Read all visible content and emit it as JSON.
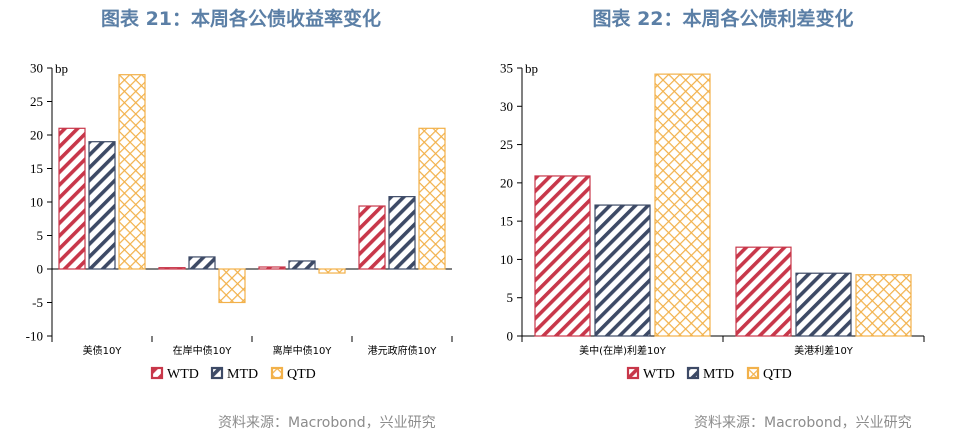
{
  "figures": [
    {
      "title": "图表 21：本周各公债收益率变化",
      "source": "资料来源：Macrobond，兴业研究",
      "chart_data": {
        "type": "bar",
        "unit": "bp",
        "categories": [
          "美债10Y",
          "在岸中债10Y",
          "离岸中债10Y",
          "港元政府债10Y"
        ],
        "series": [
          {
            "name": "WTD",
            "values": [
              21,
              0.2,
              0.3,
              9.4
            ]
          },
          {
            "name": "MTD",
            "values": [
              19,
              1.8,
              1.2,
              10.8
            ]
          },
          {
            "name": "QTD",
            "values": [
              29,
              -5,
              -0.6,
              21
            ]
          }
        ],
        "ylim": [
          -10,
          30
        ],
        "yticks": [
          -10,
          -5,
          0,
          5,
          10,
          15,
          20,
          25,
          30
        ],
        "legend": "bottom"
      }
    },
    {
      "title": "图表 22：本周各公债利差变化",
      "source": "资料来源：Macrobond，兴业研究",
      "chart_data": {
        "type": "bar",
        "unit": "bp",
        "categories": [
          "美中(在岸)利差10Y",
          "美港利差10Y"
        ],
        "series": [
          {
            "name": "WTD",
            "values": [
              20.9,
              11.6
            ]
          },
          {
            "name": "MTD",
            "values": [
              17.1,
              8.2
            ]
          },
          {
            "name": "QTD",
            "values": [
              34.2,
              8
            ]
          }
        ],
        "ylim": [
          0,
          35
        ],
        "yticks": [
          0,
          5,
          10,
          15,
          20,
          25,
          30,
          35
        ],
        "legend": "bottom"
      }
    }
  ],
  "colors": {
    "WTD": "#c8374a",
    "MTD": "#3d4a66",
    "QTD": "#f2b14a"
  }
}
